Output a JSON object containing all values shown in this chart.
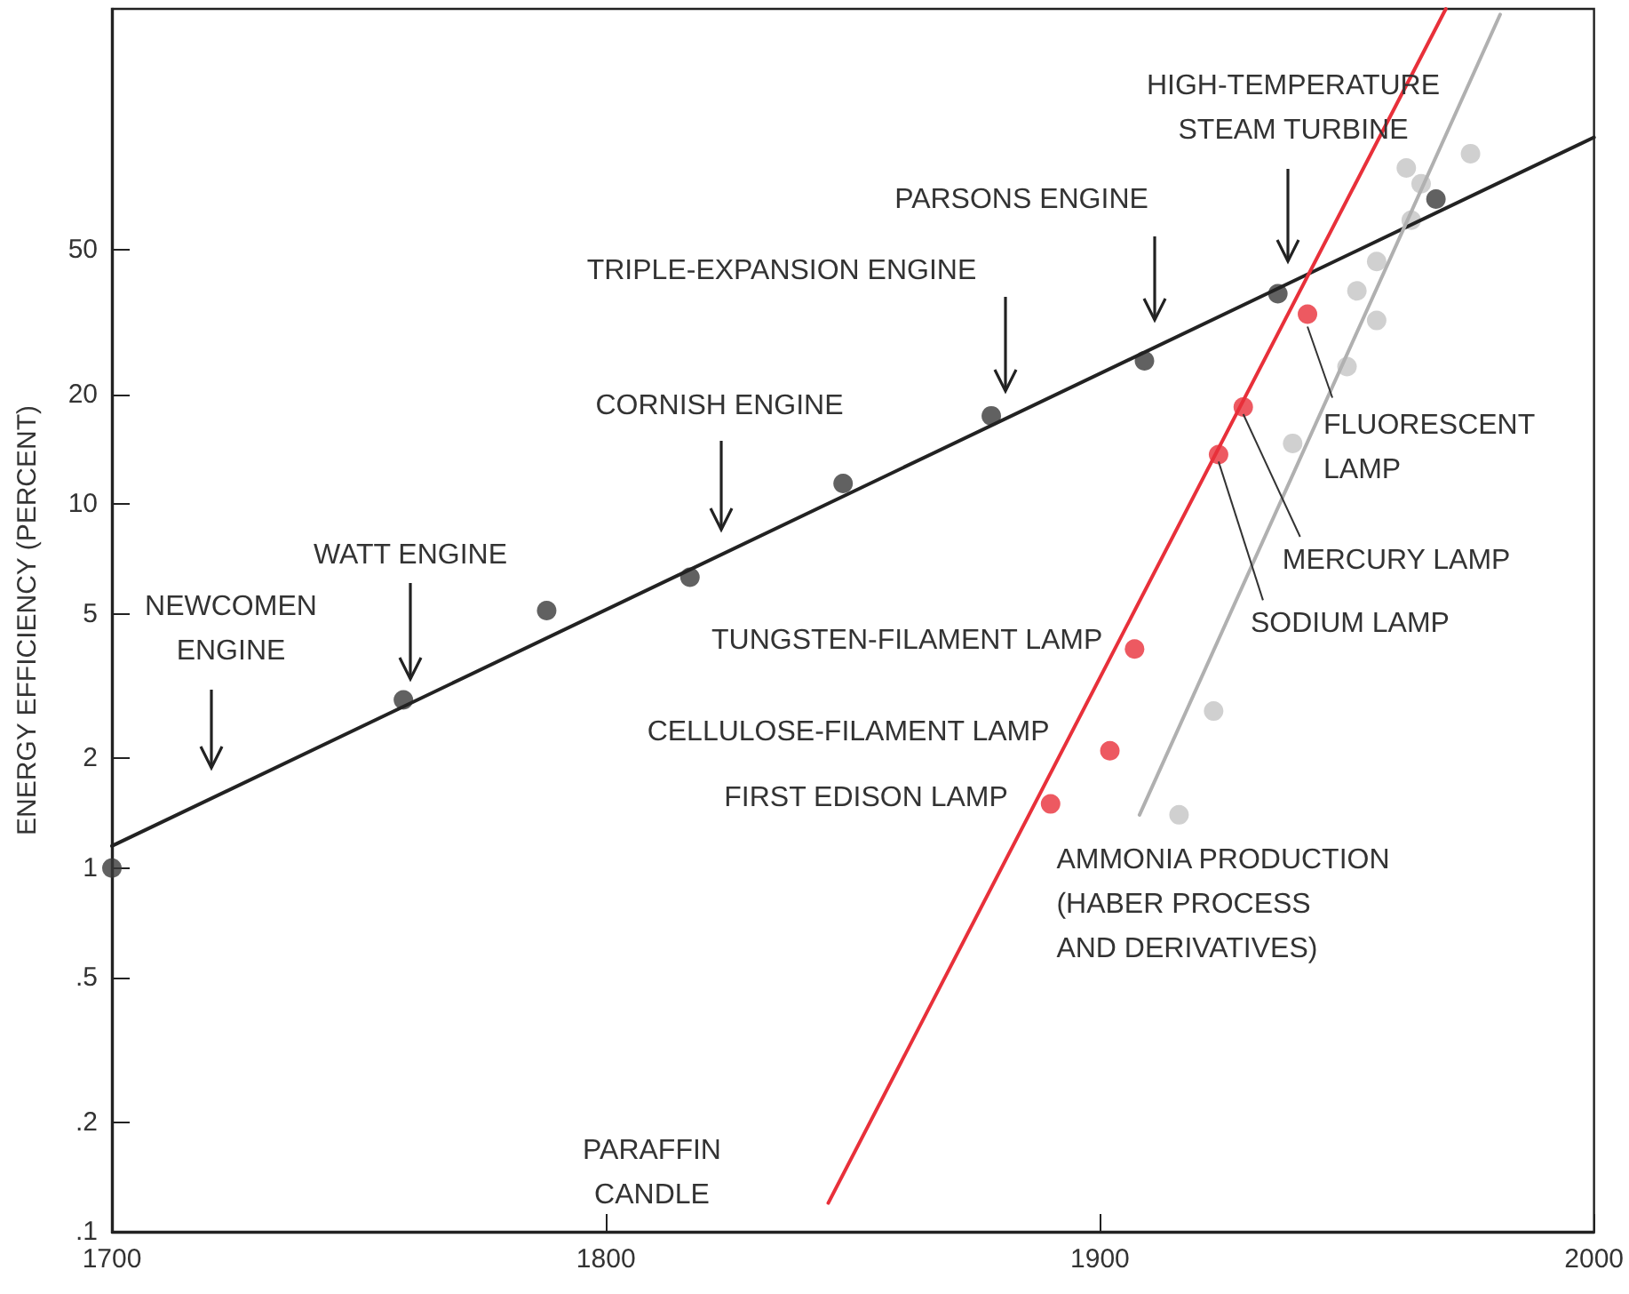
{
  "chart_data": {
    "type": "scatter",
    "ylabel": "ENERGY EFFICIENCY (PERCENT)",
    "log": "y",
    "grid": false,
    "marker": "circle",
    "xlim": [
      1700,
      2000
    ],
    "xticks": [
      1700,
      1800,
      1900,
      2000
    ],
    "ylim": [
      0.1,
      230
    ],
    "yticks": [
      {
        "value": 0.1,
        "label": ".1"
      },
      {
        "value": 0.2,
        "label": ".2"
      },
      {
        "value": 0.5,
        "label": ".5"
      },
      1,
      2,
      5,
      10,
      20,
      50
    ],
    "series": [
      {
        "color": "#3a3a3a",
        "x": [
          1700,
          1759,
          1788,
          1817,
          1848,
          1878,
          1909,
          1936,
          1968
        ],
        "values": [
          1.0,
          2.9,
          5.1,
          6.3,
          11.4,
          17.5,
          24.8,
          37.9,
          69
        ]
      },
      {
        "type": "line",
        "color": "#222222",
        "marker": "none",
        "x": [
          1700,
          2000
        ],
        "values": [
          1.15,
          102
        ]
      },
      {
        "color": "#e8303a",
        "x": [
          1890,
          1902,
          1907,
          1924,
          1929,
          1942
        ],
        "values": [
          1.5,
          2.1,
          4.0,
          13.7,
          18.5,
          33.3
        ]
      },
      {
        "type": "line",
        "color": "#e8303a",
        "marker": "none",
        "x": [
          1845,
          1970
        ],
        "values": [
          0.12,
          230
        ]
      },
      {
        "color": "#c4c4c4",
        "x": [
          1916,
          1923,
          1939,
          1950,
          1956,
          1952,
          1956,
          1963,
          1965,
          1962,
          1975
        ],
        "values": [
          1.4,
          2.7,
          14.7,
          23.9,
          32,
          38.6,
          46.5,
          60.4,
          76,
          84,
          92
        ]
      },
      {
        "type": "line",
        "color": "#b0b0b0",
        "marker": "none",
        "x": [
          1908,
          1981
        ],
        "values": [
          1.4,
          222
        ]
      }
    ],
    "annotations": [
      "NEWCOMEN\nENGINE",
      "WATT ENGINE",
      "CORNISH ENGINE",
      "TRIPLE-EXPANSION ENGINE",
      "PARSONS ENGINE",
      "HIGH-TEMPERATURE\nSTEAM TURBINE",
      {
        "text": "TUNGSTEN-FILAMENT LAMP",
        "x": 1907,
        "y": 4.0
      },
      {
        "text": "CELLULOSE-FILAMENT LAMP",
        "x": 1902,
        "y": 2.1
      },
      {
        "text": "FIRST EDISON LAMP",
        "x": 1890,
        "y": 1.5
      },
      {
        "text": "SODIUM LAMP",
        "x": 1924,
        "y": 13.7
      },
      {
        "text": "MERCURY LAMP",
        "x": 1929,
        "y": 18.5
      },
      {
        "text": "FLUORESCENT\nLAMP",
        "x": 1942,
        "y": 33.3
      },
      {
        "text": "AMMONIA PRODUCTION\n(HABER PROCESS\nAND DERIVATIVES)",
        "x": 1916,
        "y": 1.4
      },
      "PARAFFIN\nCANDLE"
    ]
  }
}
